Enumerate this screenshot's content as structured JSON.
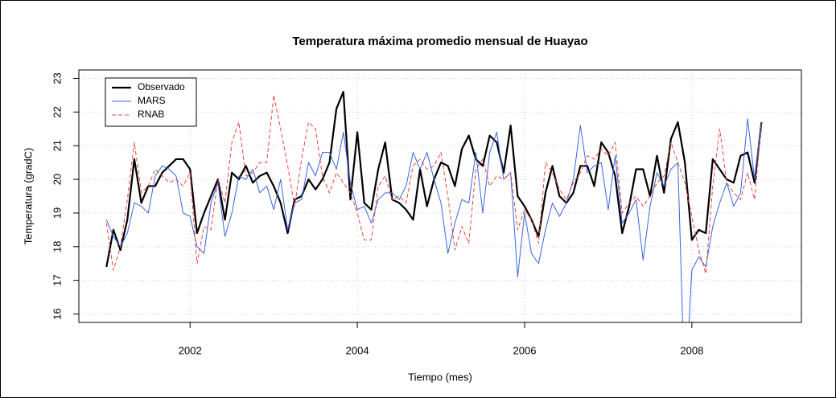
{
  "chart_data": {
    "type": "line",
    "title": "Temperatura máxima promedio mensual de Huayao",
    "x_label": "Tiempo (mes)",
    "y_label": "Temperatura (gradC)",
    "x": [
      2001,
      2001.083,
      2001.167,
      2001.25,
      2001.333,
      2001.417,
      2001.5,
      2001.583,
      2001.667,
      2001.75,
      2001.833,
      2001.917,
      2002,
      2002.083,
      2002.167,
      2002.25,
      2002.333,
      2002.417,
      2002.5,
      2002.583,
      2002.667,
      2002.75,
      2002.833,
      2002.917,
      2003,
      2003.083,
      2003.167,
      2003.25,
      2003.333,
      2003.417,
      2003.5,
      2003.583,
      2003.667,
      2003.75,
      2003.833,
      2003.917,
      2004,
      2004.083,
      2004.167,
      2004.25,
      2004.333,
      2004.417,
      2004.5,
      2004.583,
      2004.667,
      2004.75,
      2004.833,
      2004.917,
      2005,
      2005.083,
      2005.167,
      2005.25,
      2005.333,
      2005.417,
      2005.5,
      2005.583,
      2005.667,
      2005.75,
      2005.833,
      2005.917,
      2006,
      2006.083,
      2006.167,
      2006.25,
      2006.333,
      2006.417,
      2006.5,
      2006.583,
      2006.667,
      2006.75,
      2006.833,
      2006.917,
      2007,
      2007.083,
      2007.167,
      2007.25,
      2007.333,
      2007.417,
      2007.5,
      2007.583,
      2007.667,
      2007.75,
      2007.833,
      2007.917,
      2008,
      2008.083,
      2008.167,
      2008.25,
      2008.333,
      2008.417,
      2008.5,
      2008.583,
      2008.667,
      2008.75,
      2008.833
    ],
    "series": [
      {
        "name": "Observado",
        "color": "#000000",
        "width": 2.2,
        "dashed": false,
        "values": [
          17.4,
          18.5,
          17.9,
          18.8,
          20.6,
          19.3,
          19.8,
          19.8,
          20.2,
          20.4,
          20.6,
          20.6,
          20.3,
          18.4,
          19.0,
          19.5,
          20.0,
          18.8,
          20.2,
          20.0,
          20.4,
          19.9,
          20.1,
          20.2,
          19.8,
          19.3,
          18.4,
          19.4,
          19.5,
          20.0,
          19.7,
          20.0,
          20.5,
          22.1,
          22.6,
          19.4,
          21.4,
          19.3,
          19.1,
          20.3,
          21.1,
          19.4,
          19.3,
          19.1,
          18.8,
          20.3,
          19.2,
          20.0,
          20.5,
          20.4,
          19.8,
          20.9,
          21.3,
          20.6,
          20.4,
          21.3,
          21.1,
          20.2,
          21.6,
          19.5,
          19.2,
          18.8,
          18.3,
          19.6,
          20.4,
          19.5,
          19.3,
          19.6,
          20.4,
          20.4,
          19.8,
          21.1,
          20.8,
          20.1,
          18.4,
          19.2,
          20.3,
          20.3,
          19.5,
          20.7,
          19.6,
          21.2,
          21.7,
          20.5,
          18.2,
          18.5,
          18.4,
          20.6,
          20.3,
          20.0,
          19.9,
          20.7,
          20.8,
          19.9,
          21.7
        ]
      },
      {
        "name": "MARS",
        "color": "#3b64e0",
        "width": 1,
        "dashed": false,
        "values": [
          18.8,
          18.3,
          18.0,
          18.4,
          19.3,
          19.2,
          19.0,
          20.1,
          20.4,
          20.3,
          20.1,
          19.0,
          18.9,
          18.0,
          17.8,
          19.3,
          19.9,
          18.3,
          19.0,
          20.1,
          20.0,
          20.3,
          19.6,
          19.8,
          19.1,
          20.0,
          18.5,
          19.3,
          19.4,
          20.5,
          20.1,
          20.8,
          20.8,
          20.3,
          21.4,
          19.9,
          19.1,
          19.2,
          18.7,
          19.4,
          19.6,
          19.6,
          19.4,
          19.8,
          20.8,
          20.3,
          20.8,
          20.0,
          19.3,
          17.8,
          18.7,
          19.4,
          19.3,
          20.8,
          19.0,
          20.8,
          21.4,
          20.0,
          20.2,
          17.1,
          19.0,
          17.8,
          17.5,
          18.5,
          19.3,
          18.9,
          19.3,
          20.0,
          21.6,
          20.2,
          20.4,
          20.5,
          19.1,
          20.7,
          18.7,
          19.0,
          19.4,
          17.6,
          19.2,
          20.2,
          19.8,
          20.3,
          20.5,
          13.5,
          17.3,
          17.7,
          17.4,
          18.6,
          19.3,
          19.9,
          19.2,
          19.6,
          21.8,
          20.0,
          21.7
        ]
      },
      {
        "name": "RNAB",
        "color": "#e8453c",
        "width": 1,
        "dashed": true,
        "values": [
          18.7,
          17.3,
          18.0,
          19.4,
          21.1,
          19.6,
          19.8,
          20.3,
          20.1,
          19.9,
          20.0,
          19.8,
          20.2,
          17.5,
          18.6,
          18.5,
          20.0,
          19.3,
          21.1,
          21.7,
          20.1,
          20.2,
          20.5,
          20.5,
          22.5,
          21.5,
          20.4,
          19.2,
          20.6,
          21.7,
          21.5,
          20.1,
          19.6,
          20.2,
          19.9,
          19.6,
          19.0,
          18.2,
          18.2,
          19.8,
          20.1,
          19.4,
          19.5,
          19.3,
          20.4,
          20.6,
          20.3,
          20.4,
          20.8,
          19.5,
          17.9,
          18.6,
          18.1,
          20.3,
          20.6,
          19.8,
          20.1,
          20.0,
          20.2,
          18.5,
          19.1,
          18.8,
          18.1,
          20.5,
          20.2,
          19.7,
          19.4,
          19.9,
          20.2,
          20.7,
          20.6,
          20.9,
          20.7,
          21.1,
          19.0,
          19.3,
          19.5,
          19.2,
          19.5,
          19.9,
          20.1,
          21.1,
          20.5,
          19.9,
          18.9,
          17.9,
          17.2,
          19.8,
          21.5,
          19.9,
          19.6,
          19.4,
          20.2,
          19.4,
          21.7
        ]
      }
    ],
    "xlim": [
      2000.67,
      2009.31
    ],
    "ylim": [
      15.75,
      23.25
    ],
    "xticks": [
      2002,
      2004,
      2006,
      2008
    ],
    "yticks": [
      16,
      17,
      18,
      19,
      20,
      21,
      22,
      23
    ],
    "grid": true,
    "legend": "top-left"
  }
}
